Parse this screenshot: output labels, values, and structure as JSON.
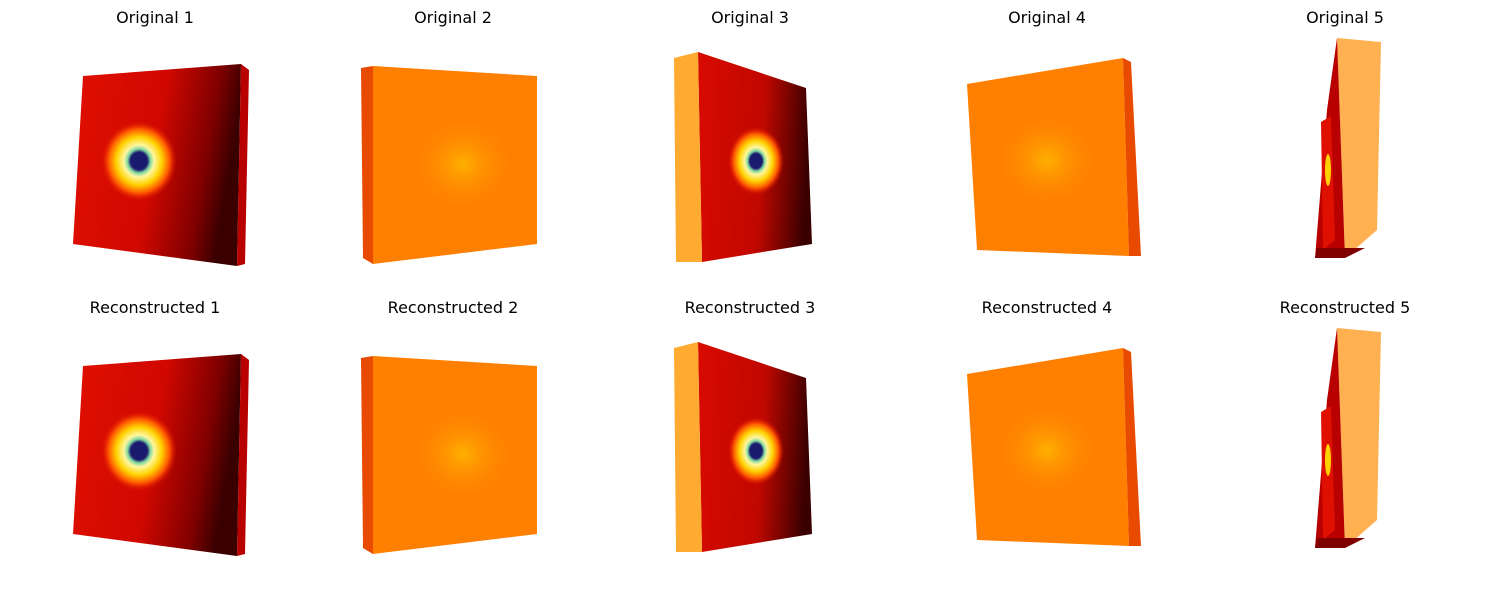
{
  "figure": {
    "rows": [
      {
        "panels": [
          {
            "title": "Original 1",
            "volume": "hot"
          },
          {
            "title": "Original 2",
            "volume": "flat"
          },
          {
            "title": "Original 3",
            "volume": "hot"
          },
          {
            "title": "Original 4",
            "volume": "flat"
          },
          {
            "title": "Original 5",
            "volume": "thin"
          }
        ]
      },
      {
        "panels": [
          {
            "title": "Reconstructed 1",
            "volume": "hot"
          },
          {
            "title": "Reconstructed 2",
            "volume": "flat"
          },
          {
            "title": "Reconstructed 3",
            "volume": "hot"
          },
          {
            "title": "Reconstructed 4",
            "volume": "flat"
          },
          {
            "title": "Reconstructed 5",
            "volume": "thin"
          }
        ]
      }
    ],
    "colors": {
      "hot_edge": "#b80000",
      "hot_face": "#e01000",
      "hot_dark": "#4a0000",
      "flat_face": "#ff7f00",
      "flat_edge": "#e84a00",
      "spot_outer": "#ffd200",
      "spot_mid": "#fff7a0",
      "spot_ring": "#7fd7a0",
      "spot_core": "#1a1a6e",
      "glow": "#ffb000"
    }
  }
}
